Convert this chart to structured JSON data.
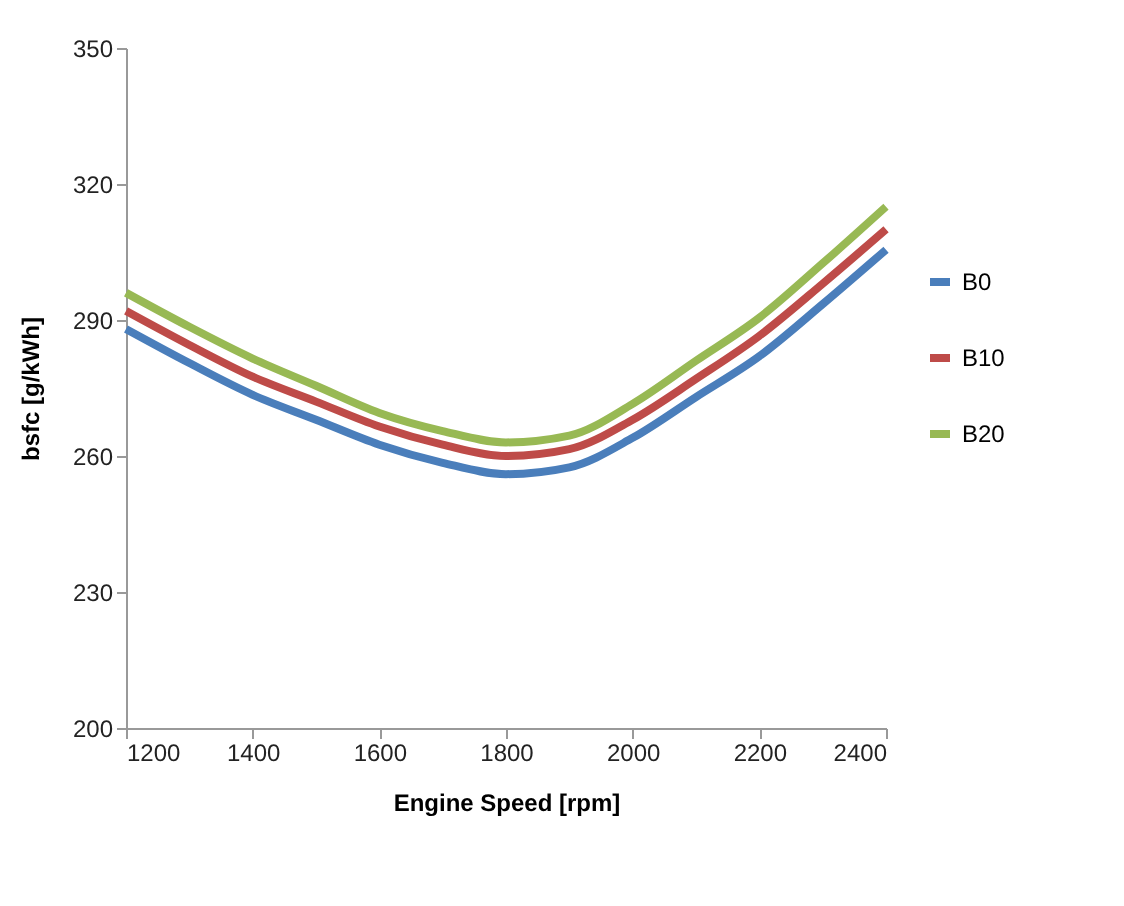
{
  "chart_data": {
    "type": "line",
    "xlabel": "Engine Speed [rpm]",
    "ylabel": "bsfc [g/kWh]",
    "x": [
      1200,
      1300,
      1400,
      1500,
      1600,
      1700,
      1800,
      1900,
      2000,
      2100,
      2200,
      2300,
      2400
    ],
    "series": [
      {
        "name": "B0",
        "color": "#4a7ebb",
        "values": [
          288,
          280.5,
          273.5,
          268,
          262.5,
          258.5,
          256,
          257.5,
          264,
          273,
          282,
          293.5,
          305.5
        ]
      },
      {
        "name": "B10",
        "color": "#be4b48",
        "values": [
          292,
          284.5,
          277.5,
          272,
          266.5,
          262.5,
          260,
          261.5,
          268,
          277,
          286.5,
          298,
          310
        ]
      },
      {
        "name": "B20",
        "color": "#98b954",
        "values": [
          296,
          288.5,
          281.5,
          275.5,
          269.5,
          265.5,
          263,
          264.5,
          271.5,
          281,
          290.5,
          302.5,
          315
        ]
      }
    ],
    "xlim": [
      1200,
      2400
    ],
    "xticks": [
      1200,
      1400,
      1600,
      1800,
      2000,
      2200,
      2400
    ],
    "ylim": [
      200,
      350
    ],
    "yticks": [
      200,
      230,
      260,
      290,
      320,
      350
    ],
    "legend": "right",
    "grid": false
  }
}
